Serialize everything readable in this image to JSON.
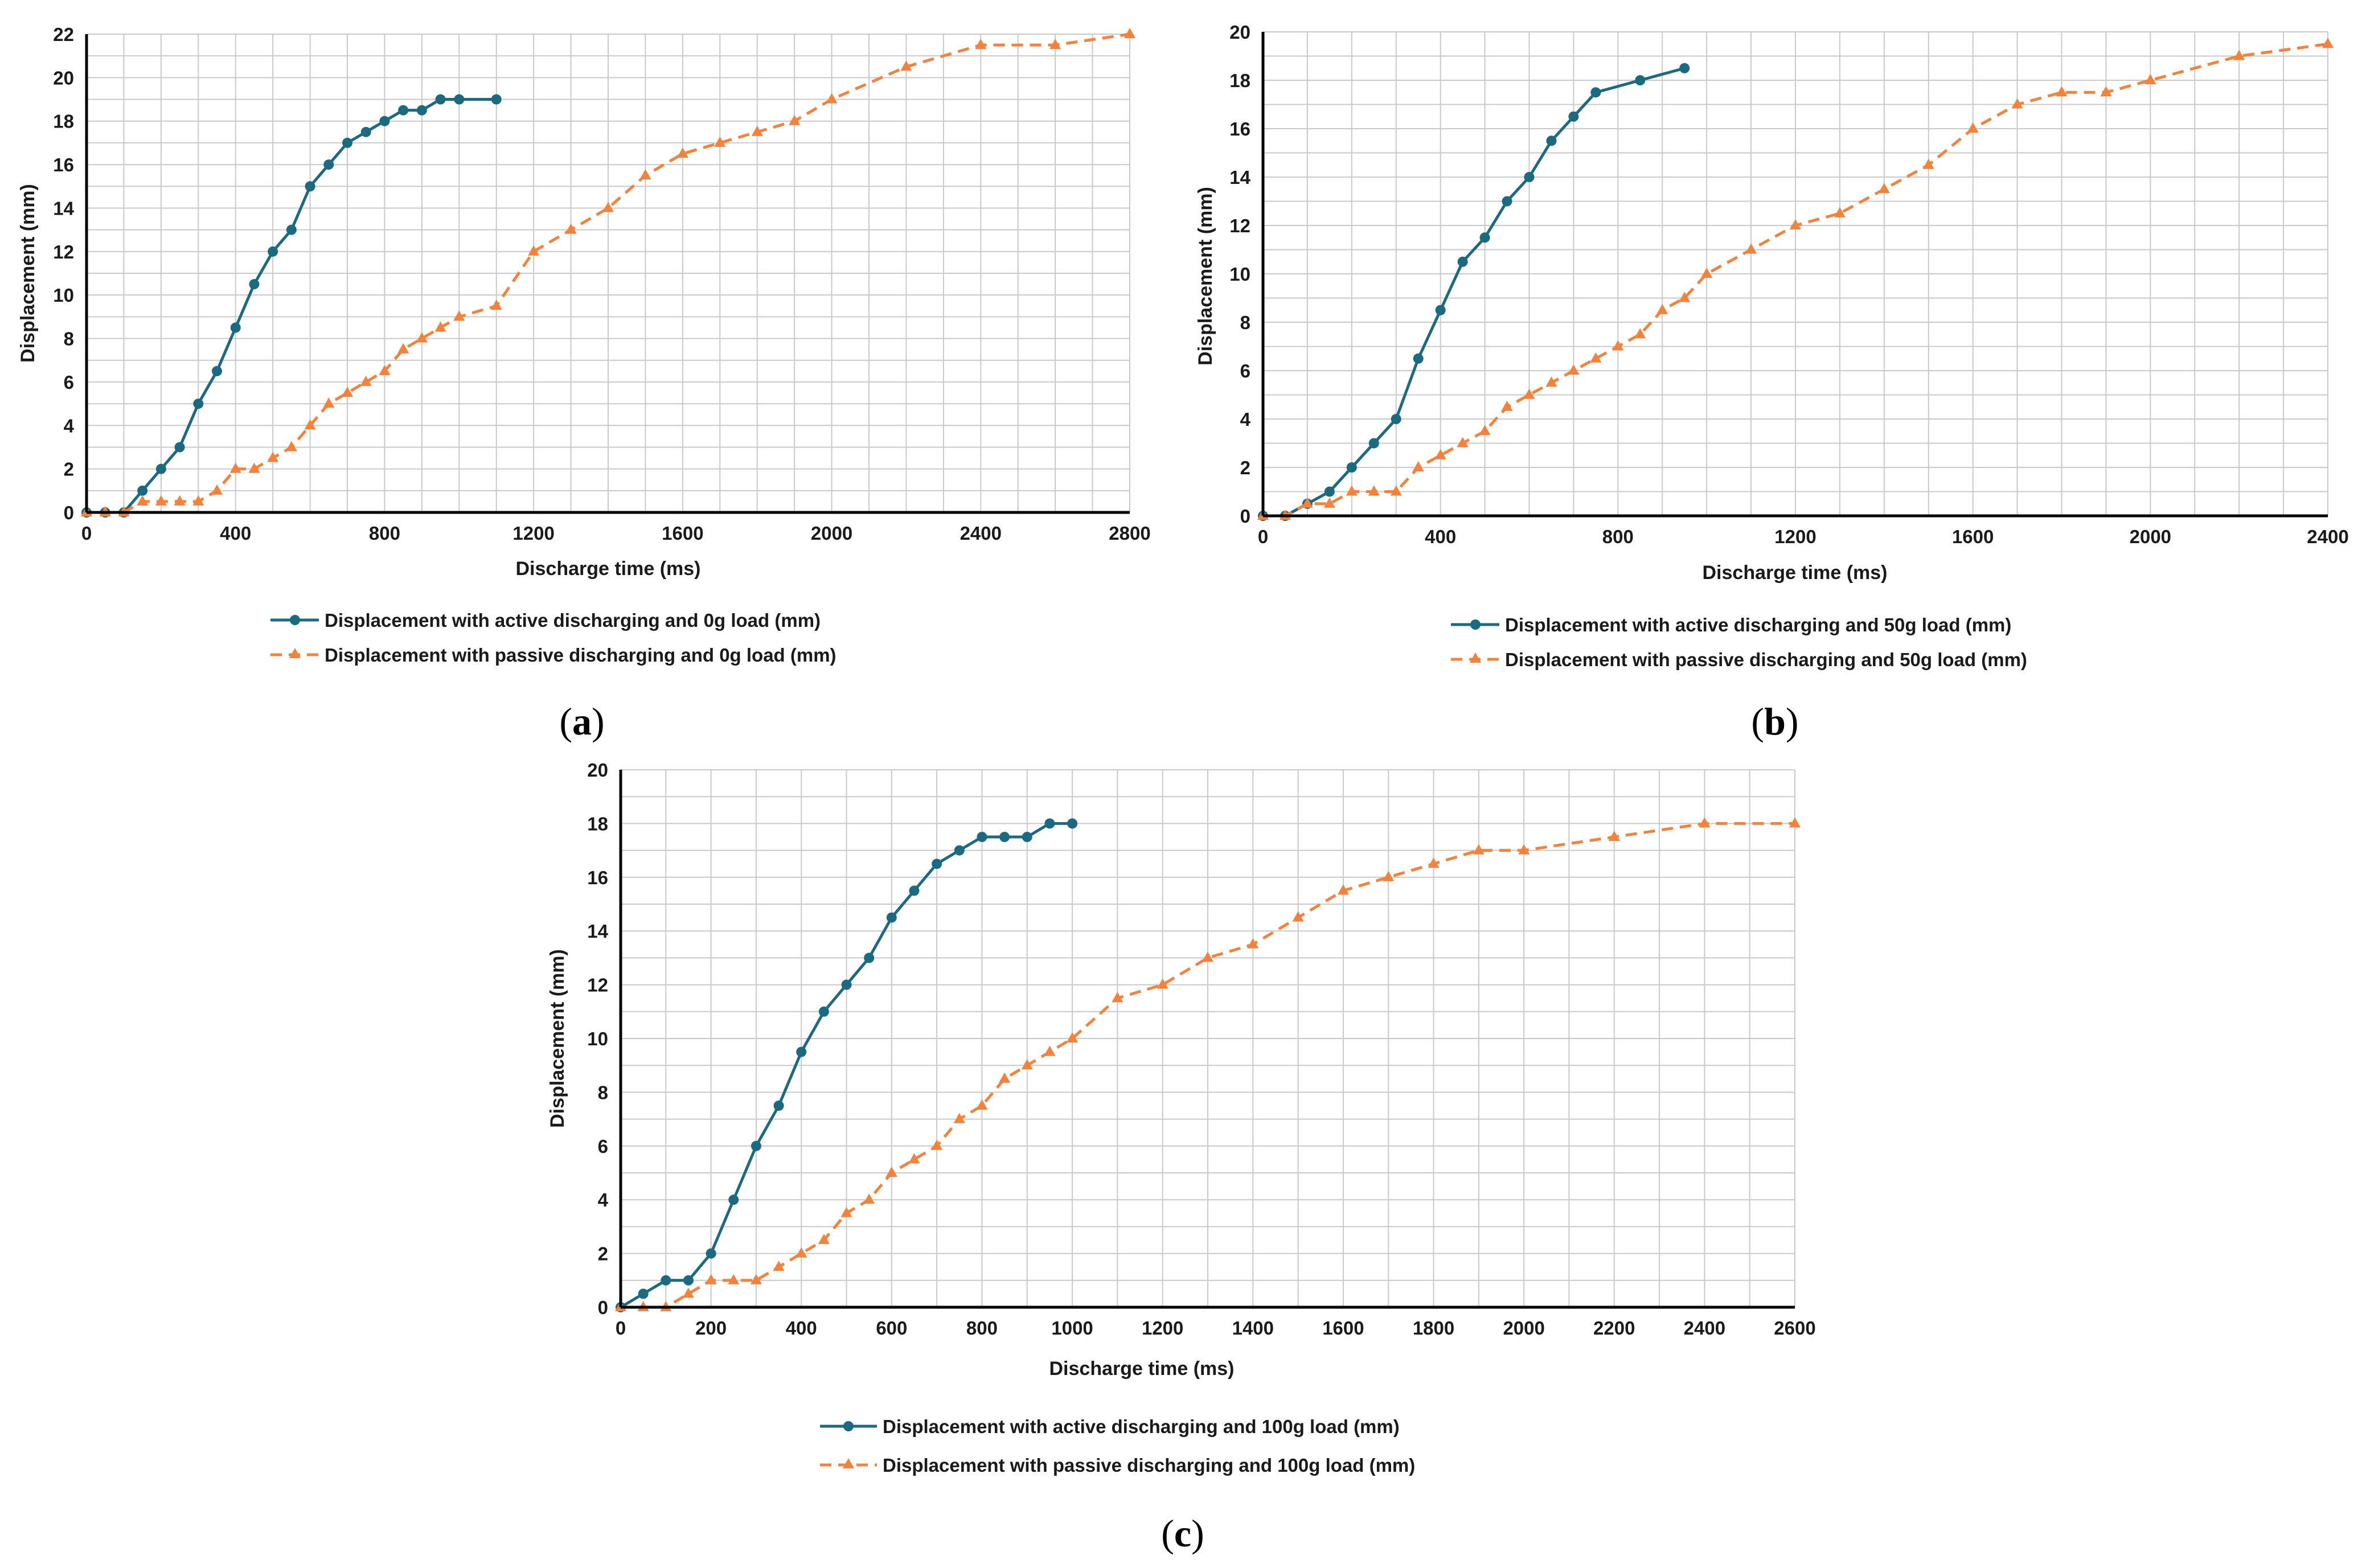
{
  "colors": {
    "active": "#1a6a82",
    "passive": "#f4823a",
    "grid": "#c9c9c9",
    "axis": "#000000"
  },
  "chart_data": [
    {
      "type": "line",
      "panel_label": "a",
      "xlabel": "Discharge time (ms)",
      "ylabel": "Displacement (mm)",
      "xlim": [
        0,
        2800
      ],
      "ylim": [
        0,
        22
      ],
      "x_ticks": [
        0,
        400,
        800,
        1200,
        1600,
        2000,
        2400,
        2800
      ],
      "y_ticks": [
        0,
        2,
        4,
        6,
        8,
        10,
        12,
        14,
        16,
        18,
        20,
        22
      ],
      "x_minor_step": 100,
      "y_minor_step": 1,
      "grid": true,
      "legend_position": "bottom",
      "series": [
        {
          "name": "Displacement with active discharging and 0g load (mm)",
          "style": "solid",
          "marker": "circle",
          "color": "#1a6a82",
          "x": [
            0,
            50,
            100,
            150,
            200,
            250,
            300,
            350,
            400,
            450,
            500,
            550,
            600,
            650,
            700,
            750,
            800,
            850,
            900,
            950,
            1000,
            1100
          ],
          "y": [
            0,
            0,
            0,
            1,
            2,
            3,
            5,
            6.5,
            8.5,
            10.5,
            12,
            13,
            15,
            16,
            17,
            17.5,
            18,
            18.5,
            18.5,
            19,
            19,
            19
          ]
        },
        {
          "name": "Displacement with passive discharging and 0g load (mm)",
          "style": "dashed",
          "marker": "triangle",
          "color": "#f4823a",
          "x": [
            0,
            50,
            100,
            150,
            200,
            250,
            300,
            350,
            400,
            450,
            500,
            550,
            600,
            650,
            700,
            750,
            800,
            850,
            900,
            950,
            1000,
            1100,
            1200,
            1300,
            1400,
            1500,
            1600,
            1700,
            1800,
            1900,
            2000,
            2200,
            2400,
            2600,
            2800
          ],
          "y": [
            0,
            0,
            0,
            0.5,
            0.5,
            0.5,
            0.5,
            1,
            2,
            2,
            2.5,
            3,
            4,
            5,
            5.5,
            6,
            6.5,
            7.5,
            8,
            8.5,
            9,
            9.5,
            12,
            13,
            14,
            15.5,
            16.5,
            17,
            17.5,
            18,
            19,
            20.5,
            21.5,
            21.5,
            22
          ]
        }
      ]
    },
    {
      "type": "line",
      "panel_label": "b",
      "xlabel": "Discharge time (ms)",
      "ylabel": "Displacement (mm)",
      "xlim": [
        0,
        2400
      ],
      "ylim": [
        0,
        20
      ],
      "x_ticks": [
        0,
        400,
        800,
        1200,
        1600,
        2000,
        2400
      ],
      "y_ticks": [
        0,
        2,
        4,
        6,
        8,
        10,
        12,
        14,
        16,
        18,
        20
      ],
      "x_minor_step": 100,
      "y_minor_step": 1,
      "grid": true,
      "legend_position": "bottom",
      "series": [
        {
          "name": "Displacement with active discharging and 50g load (mm)",
          "style": "solid",
          "marker": "circle",
          "color": "#1a6a82",
          "x": [
            0,
            50,
            100,
            150,
            200,
            250,
            300,
            350,
            400,
            450,
            500,
            550,
            600,
            650,
            700,
            750,
            850,
            950
          ],
          "y": [
            0,
            0,
            0.5,
            1,
            2,
            3,
            4,
            6.5,
            8.5,
            10.5,
            11.5,
            13,
            14,
            15.5,
            16.5,
            17.5,
            18,
            18.5
          ]
        },
        {
          "name": "Displacement with passive discharging and 50g load (mm)",
          "style": "dashed",
          "marker": "triangle",
          "color": "#f4823a",
          "x": [
            0,
            50,
            100,
            150,
            200,
            250,
            300,
            350,
            400,
            450,
            500,
            550,
            600,
            650,
            700,
            750,
            800,
            850,
            900,
            950,
            1000,
            1100,
            1200,
            1300,
            1400,
            1500,
            1600,
            1700,
            1800,
            1900,
            2000,
            2200,
            2400
          ],
          "y": [
            0,
            0,
            0.5,
            0.5,
            1,
            1,
            1,
            2,
            2.5,
            3,
            3.5,
            4.5,
            5,
            5.5,
            6,
            6.5,
            7,
            7.5,
            8.5,
            9,
            10,
            11,
            12,
            12.5,
            13.5,
            14.5,
            16,
            17,
            17.5,
            17.5,
            18,
            19,
            19.5
          ]
        }
      ]
    },
    {
      "type": "line",
      "panel_label": "c",
      "xlabel": "Discharge time (ms)",
      "ylabel": "Displacement (mm)",
      "xlim": [
        0,
        2600
      ],
      "ylim": [
        0,
        20
      ],
      "x_ticks": [
        0,
        200,
        400,
        600,
        800,
        1000,
        1200,
        1400,
        1600,
        1800,
        2000,
        2200,
        2400,
        2600
      ],
      "y_ticks": [
        0,
        2,
        4,
        6,
        8,
        10,
        12,
        14,
        16,
        18,
        20
      ],
      "x_minor_step": 100,
      "y_minor_step": 1,
      "grid": true,
      "legend_position": "bottom",
      "series": [
        {
          "name": "Displacement with active discharging and 100g load (mm)",
          "style": "solid",
          "marker": "circle",
          "color": "#1a6a82",
          "x": [
            0,
            50,
            100,
            150,
            200,
            250,
            300,
            350,
            400,
            450,
            500,
            550,
            600,
            650,
            700,
            750,
            800,
            850,
            900,
            950,
            1000
          ],
          "y": [
            0,
            0.5,
            1,
            1,
            2,
            4,
            6,
            7.5,
            9.5,
            11,
            12,
            13,
            14.5,
            15.5,
            16.5,
            17,
            17.5,
            17.5,
            17.5,
            18,
            18
          ]
        },
        {
          "name": "Displacement with passive discharging and 100g load (mm)",
          "style": "dashed",
          "marker": "triangle",
          "color": "#f4823a",
          "x": [
            0,
            50,
            100,
            150,
            200,
            250,
            300,
            350,
            400,
            450,
            500,
            550,
            600,
            650,
            700,
            750,
            800,
            850,
            900,
            950,
            1000,
            1100,
            1200,
            1300,
            1400,
            1500,
            1600,
            1700,
            1800,
            1900,
            2000,
            2200,
            2400,
            2600
          ],
          "y": [
            0,
            0,
            0,
            0.5,
            1,
            1,
            1,
            1.5,
            2,
            2.5,
            3.5,
            4,
            5,
            5.5,
            6,
            7,
            7.5,
            8.5,
            9,
            9.5,
            10,
            11.5,
            12,
            13,
            13.5,
            14.5,
            15.5,
            16,
            16.5,
            17,
            17,
            17.5,
            18,
            18
          ]
        }
      ]
    }
  ]
}
